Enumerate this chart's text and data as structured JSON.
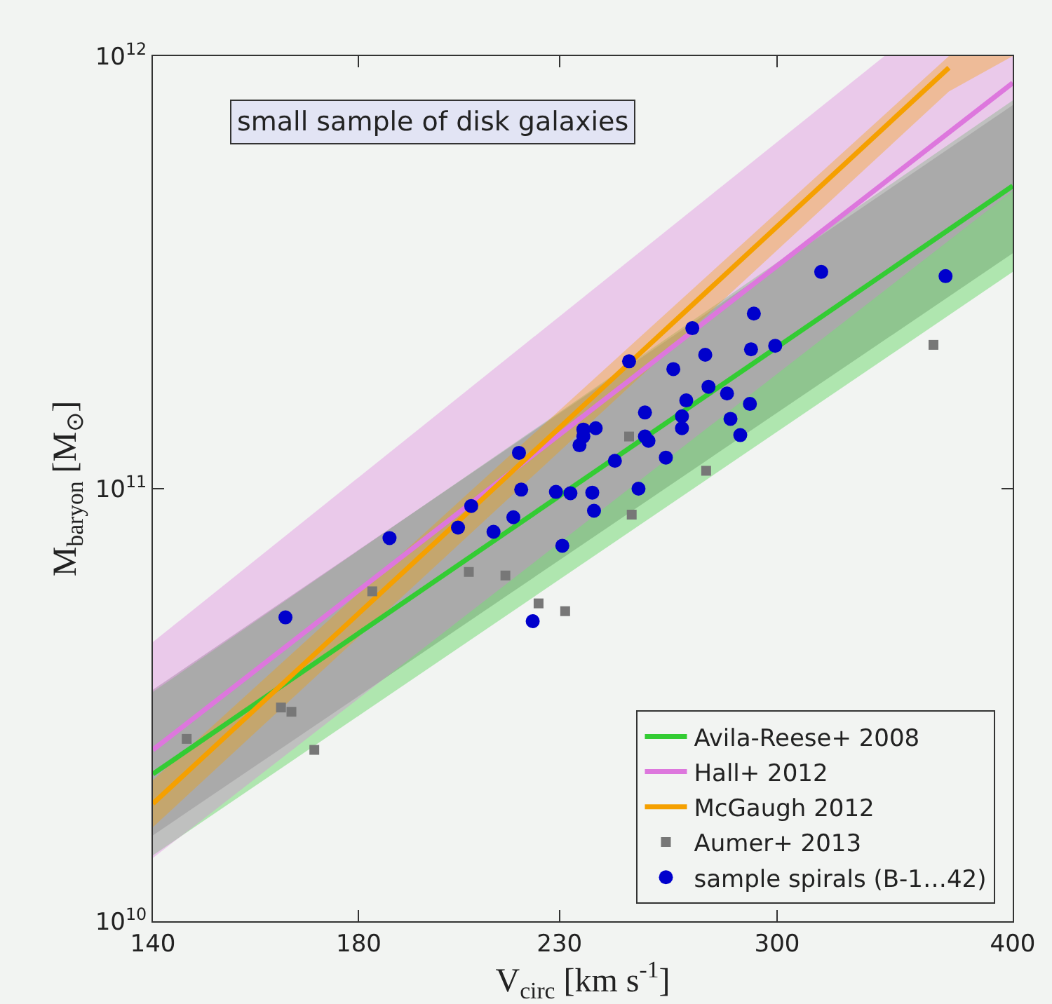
{
  "chart_data": {
    "type": "scatter",
    "xlabel": "V$_{circ}$ [km s$^{-1}$]",
    "ylabel": "M$_{baryon}$ [M$_{⊙}$]",
    "annotations": [
      "small sample of disk galaxies"
    ],
    "log": "xy",
    "grid": false,
    "legend": "bottom right",
    "xlim": [
      140,
      400
    ],
    "ylim": [
      10000000000.0,
      1000000000000.0
    ],
    "xticks": [
      140,
      180,
      230,
      300,
      400
    ],
    "yticks": [
      {
        "value": 10000000000.0,
        "label": "10$^{10}$"
      },
      {
        "value": 100000000000.0,
        "label": "10$^{11}$"
      },
      {
        "value": 1000000000000.0,
        "label": "10$^{12}$"
      }
    ],
    "series": [
      {
        "type": "line",
        "color": "#a0a0a0",
        "x": [
          140,
          400
        ],
        "values": [
          null,
          null
        ],
        "lower": [
          15800000000.0,
          350000000000.0
        ],
        "upper": [
          34300000000.0,
          770000000000.0
        ]
      },
      {
        "type": "line",
        "name": "Avila-Reese+ 2008",
        "color": "#33cc33",
        "x": [
          140,
          400
        ],
        "values": [
          21900000000.0,
          501000000000.0
        ],
        "lower": [
          14200000000.0,
          317000000000.0
        ],
        "upper": [
          33900000000.0,
          790000000000.0
        ]
      },
      {
        "type": "line",
        "name": "Hall+ 2012",
        "color": "#dd77dd",
        "x": [
          140,
          342,
          400
        ],
        "values": [
          24900000000.0,
          510000000000.0,
          867000000000.0
        ],
        "lower": [
          14000000000.0,
          287000000000.0,
          488000000000.0
        ],
        "upper": [
          44200000000.0,
          1000000000000.0,
          1000000000000.0
        ]
      },
      {
        "type": "line",
        "name": "McGaugh 2012",
        "color": "#f5a000",
        "x": [
          140,
          370,
          400
        ],
        "values": [
          18700000000.0,
          940000000000.0,
          null
        ],
        "lower": [
          16500000000.0,
          828000000000.0,
          1000000000000.0
        ],
        "upper": [
          21200000000.0,
          1000000000000.0,
          1000000000000.0
        ]
      },
      {
        "name": "Aumer+ 2013",
        "color": "#777777",
        "marker": "square",
        "x": [
          250.4,
          275.1,
          363.1,
          251.2,
          205.9,
          215.3,
          183.0,
          224.2,
          231.6,
          163.7,
          165.8,
          145.9,
          170.5
        ],
        "values": [
          132000000000.0,
          110000000000.0,
          215000000000.0,
          87100000000.0,
          64200000000.0,
          63000000000.0,
          57900000000.0,
          54300000000.0,
          52100000000.0,
          31200000000.0,
          30500000000.0,
          26400000000.0,
          24900000000.0
        ]
      },
      {
        "name": "sample spirals (B-1…42)",
        "color": "#0000cc",
        "marker": "circle",
        "x": [
          316.6,
          368.5,
          291.6,
          270.5,
          290.6,
          299.3,
          274.8,
          250.4,
          264.3,
          275.9,
          282.2,
          268.5,
          290.2,
          255.3,
          267.1,
          283.4,
          267.1,
          240.4,
          236.8,
          236.8,
          255.3,
          256.4,
          286.8,
          235.7,
          218.9,
          261.9,
          246.1,
          219.5,
          229.0,
          233.1,
          239.4,
          253.3,
          206.5,
          217.4,
          203.2,
          212.2,
          239.9,
          186.9,
          230.8,
          164.6,
          222.6
        ],
        "values": [
          317000000000.0,
          310000000000.0,
          254000000000.0,
          235000000000.0,
          210000000000.0,
          214000000000.0,
          204000000000.0,
          197000000000.0,
          189000000000.0,
          172000000000.0,
          166000000000.0,
          160000000000.0,
          157000000000.0,
          150000000000.0,
          147000000000.0,
          145000000000.0,
          138000000000.0,
          138000000000.0,
          137000000000.0,
          132000000000.0,
          132000000000.0,
          129000000000.0,
          133000000000.0,
          126000000000.0,
          121000000000.0,
          118000000000.0,
          116000000000.0,
          99500000000.0,
          98300000000.0,
          97600000000.0,
          97900000000.0,
          100000000000.0,
          91200000000.0,
          85900000000.0,
          81300000000.0,
          79500000000.0,
          88900000000.0,
          76900000000.0,
          73800000000.0,
          50400000000.0,
          49400000000.0
        ]
      }
    ]
  }
}
